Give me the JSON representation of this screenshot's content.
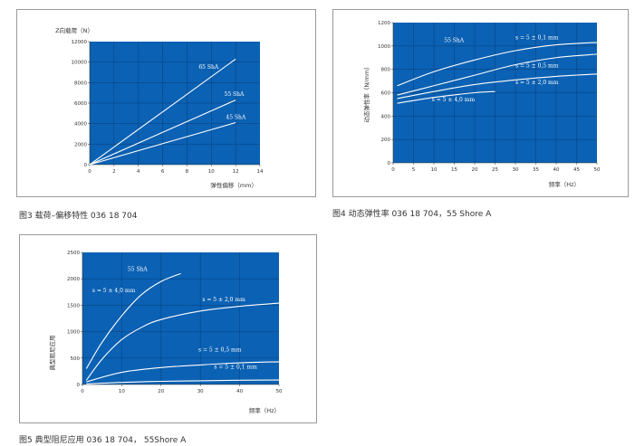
{
  "captions": [
    "图3 载荷–偏移特性 036 18 704",
    "图4 动态弹性率 036 18 704，55 Shore A",
    "图5 典型阻尼应用 036 18 704， 55Shore A"
  ],
  "colors": {
    "plot_bg": "#0b61b3",
    "curve": "#ffffff",
    "grid": "#0a3f7a"
  },
  "chart_data": [
    {
      "type": "line",
      "title": "",
      "ylabel": "Z向载荷（N）",
      "xlabel": "弹性偏移（mm）",
      "xlim": [
        0,
        14
      ],
      "ylim": [
        0,
        12000
      ],
      "xticks": [
        "0",
        "2",
        "4",
        "6",
        "8",
        "10",
        "12",
        "14"
      ],
      "yticks": [
        "0",
        "2000",
        "4000",
        "6000",
        "8000",
        "10000",
        "12000"
      ],
      "grid": true,
      "series": [
        {
          "name": "65 ShA",
          "x": [
            0,
            12
          ],
          "y": [
            0,
            10300
          ]
        },
        {
          "name": "55 ShA",
          "x": [
            0,
            12
          ],
          "y": [
            0,
            6300
          ]
        },
        {
          "name": "45 ShA",
          "x": [
            0,
            12
          ],
          "y": [
            0,
            4100
          ]
        }
      ]
    },
    {
      "type": "line",
      "title": "55 ShA",
      "ylabel": "动态弹性率（N/mm）",
      "xlabel": "频率（Hz）",
      "xlim": [
        0,
        50
      ],
      "ylim": [
        0,
        1200
      ],
      "xticks": [
        "0",
        "5",
        "10",
        "15",
        "20",
        "25",
        "30",
        "35",
        "40",
        "45",
        "50"
      ],
      "yticks": [
        "0",
        "200",
        "400",
        "600",
        "800",
        "1000",
        "1200"
      ],
      "grid": true,
      "series": [
        {
          "name": "s = 5 ± 0,1 mm",
          "x": [
            1,
            10,
            20,
            30,
            40,
            50
          ],
          "y": [
            660,
            780,
            880,
            960,
            1010,
            1030
          ]
        },
        {
          "name": "s = 5 ± 0,5 mm",
          "x": [
            1,
            10,
            20,
            30,
            40,
            50
          ],
          "y": [
            580,
            660,
            750,
            840,
            900,
            930
          ]
        },
        {
          "name": "s = 5 ± 2,0 mm",
          "x": [
            1,
            10,
            20,
            30,
            40,
            50
          ],
          "y": [
            550,
            610,
            670,
            710,
            740,
            760
          ]
        },
        {
          "name": "s = 5 ± 4,0 mm",
          "x": [
            1,
            10,
            20,
            25
          ],
          "y": [
            510,
            560,
            600,
            610
          ]
        }
      ]
    },
    {
      "type": "line",
      "title": "55 ShA",
      "ylabel": "典型阻尼应用",
      "xlabel": "频率（Hz）",
      "xlim": [
        0,
        50
      ],
      "ylim": [
        0,
        2500
      ],
      "xticks": [
        "0",
        "10",
        "20",
        "30",
        "40",
        "50"
      ],
      "yticks": [
        "0",
        "500",
        "1000",
        "1500",
        "2000",
        "2500"
      ],
      "grid": true,
      "series": [
        {
          "name": "s = 5 ± 4,0 mm",
          "x": [
            1,
            5,
            10,
            15,
            20,
            25
          ],
          "y": [
            300,
            800,
            1300,
            1700,
            1950,
            2100
          ]
        },
        {
          "name": "s = 5 ± 2,0 mm",
          "x": [
            1,
            5,
            10,
            15,
            20,
            30,
            40,
            50
          ],
          "y": [
            80,
            480,
            850,
            1080,
            1230,
            1390,
            1480,
            1540
          ]
        },
        {
          "name": "s = 5 ± 0,5 mm",
          "x": [
            1,
            10,
            20,
            30,
            40,
            50
          ],
          "y": [
            50,
            230,
            320,
            370,
            410,
            430
          ]
        },
        {
          "name": "s = 5 ± 0,1 mm",
          "x": [
            1,
            10,
            20,
            30,
            40,
            50
          ],
          "y": [
            10,
            40,
            60,
            70,
            80,
            85
          ]
        }
      ]
    }
  ]
}
